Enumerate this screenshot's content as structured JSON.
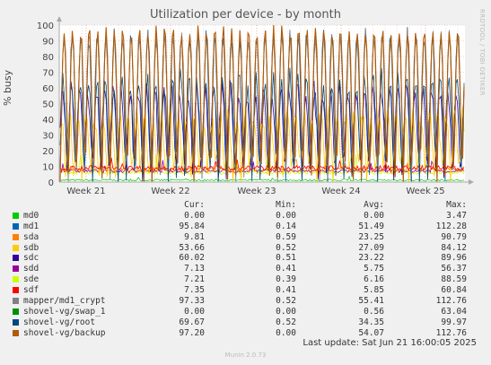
{
  "chart_data": {
    "type": "line",
    "title": "Utilization per device - by month",
    "ylabel": "% busy",
    "ylim": [
      0,
      100
    ],
    "yticks": [
      0,
      10,
      20,
      30,
      40,
      50,
      60,
      70,
      80,
      90,
      100
    ],
    "xticks": [
      "Week 21",
      "Week 22",
      "Week 23",
      "Week 24",
      "Week 25"
    ],
    "grid": true,
    "legend_headers": {
      "cur": "Cur:",
      "min": "Min:",
      "avg": "Avg:",
      "max": "Max:"
    },
    "series": [
      {
        "name": "md0",
        "color": "#00cc00",
        "cur": "0.00",
        "min": "0.00",
        "avg": "0.00",
        "max": "3.47"
      },
      {
        "name": "md1",
        "color": "#0066b3",
        "cur": "95.84",
        "min": "0.14",
        "avg": "51.49",
        "max": "112.28"
      },
      {
        "name": "sda",
        "color": "#ff8000",
        "cur": "9.81",
        "min": "0.59",
        "avg": "23.25",
        "max": "90.79"
      },
      {
        "name": "sdb",
        "color": "#ffcc00",
        "cur": "53.66",
        "min": "0.52",
        "avg": "27.09",
        "max": "84.12"
      },
      {
        "name": "sdc",
        "color": "#330099",
        "cur": "60.02",
        "min": "0.51",
        "avg": "23.22",
        "max": "89.96"
      },
      {
        "name": "sdd",
        "color": "#990099",
        "cur": "7.13",
        "min": "0.41",
        "avg": "5.75",
        "max": "56.37"
      },
      {
        "name": "sde",
        "color": "#ccff00",
        "cur": "7.21",
        "min": "0.39",
        "avg": "6.16",
        "max": "88.59"
      },
      {
        "name": "sdf",
        "color": "#ff0000",
        "cur": "7.35",
        "min": "0.41",
        "avg": "5.85",
        "max": "60.84"
      },
      {
        "name": "mapper/md1_crypt",
        "color": "#808080",
        "cur": "97.33",
        "min": "0.52",
        "avg": "55.41",
        "max": "112.76"
      },
      {
        "name": "shovel-vg/swap_1",
        "color": "#008f00",
        "cur": "0.00",
        "min": "0.00",
        "avg": "0.56",
        "max": "63.04"
      },
      {
        "name": "shovel-vg/root",
        "color": "#00487d",
        "cur": "69.67",
        "min": "0.52",
        "avg": "34.35",
        "max": "99.97"
      },
      {
        "name": "shovel-vg/backup",
        "color": "#b35a00",
        "cur": "97.20",
        "min": "0.00",
        "avg": "54.07",
        "max": "112.76"
      }
    ],
    "last_update": "Last update: Sat Jun 21 16:00:05 2025",
    "watermark": "RRDTOOL / TOBI OETIKER",
    "footer": "Munin 2.0.73"
  }
}
